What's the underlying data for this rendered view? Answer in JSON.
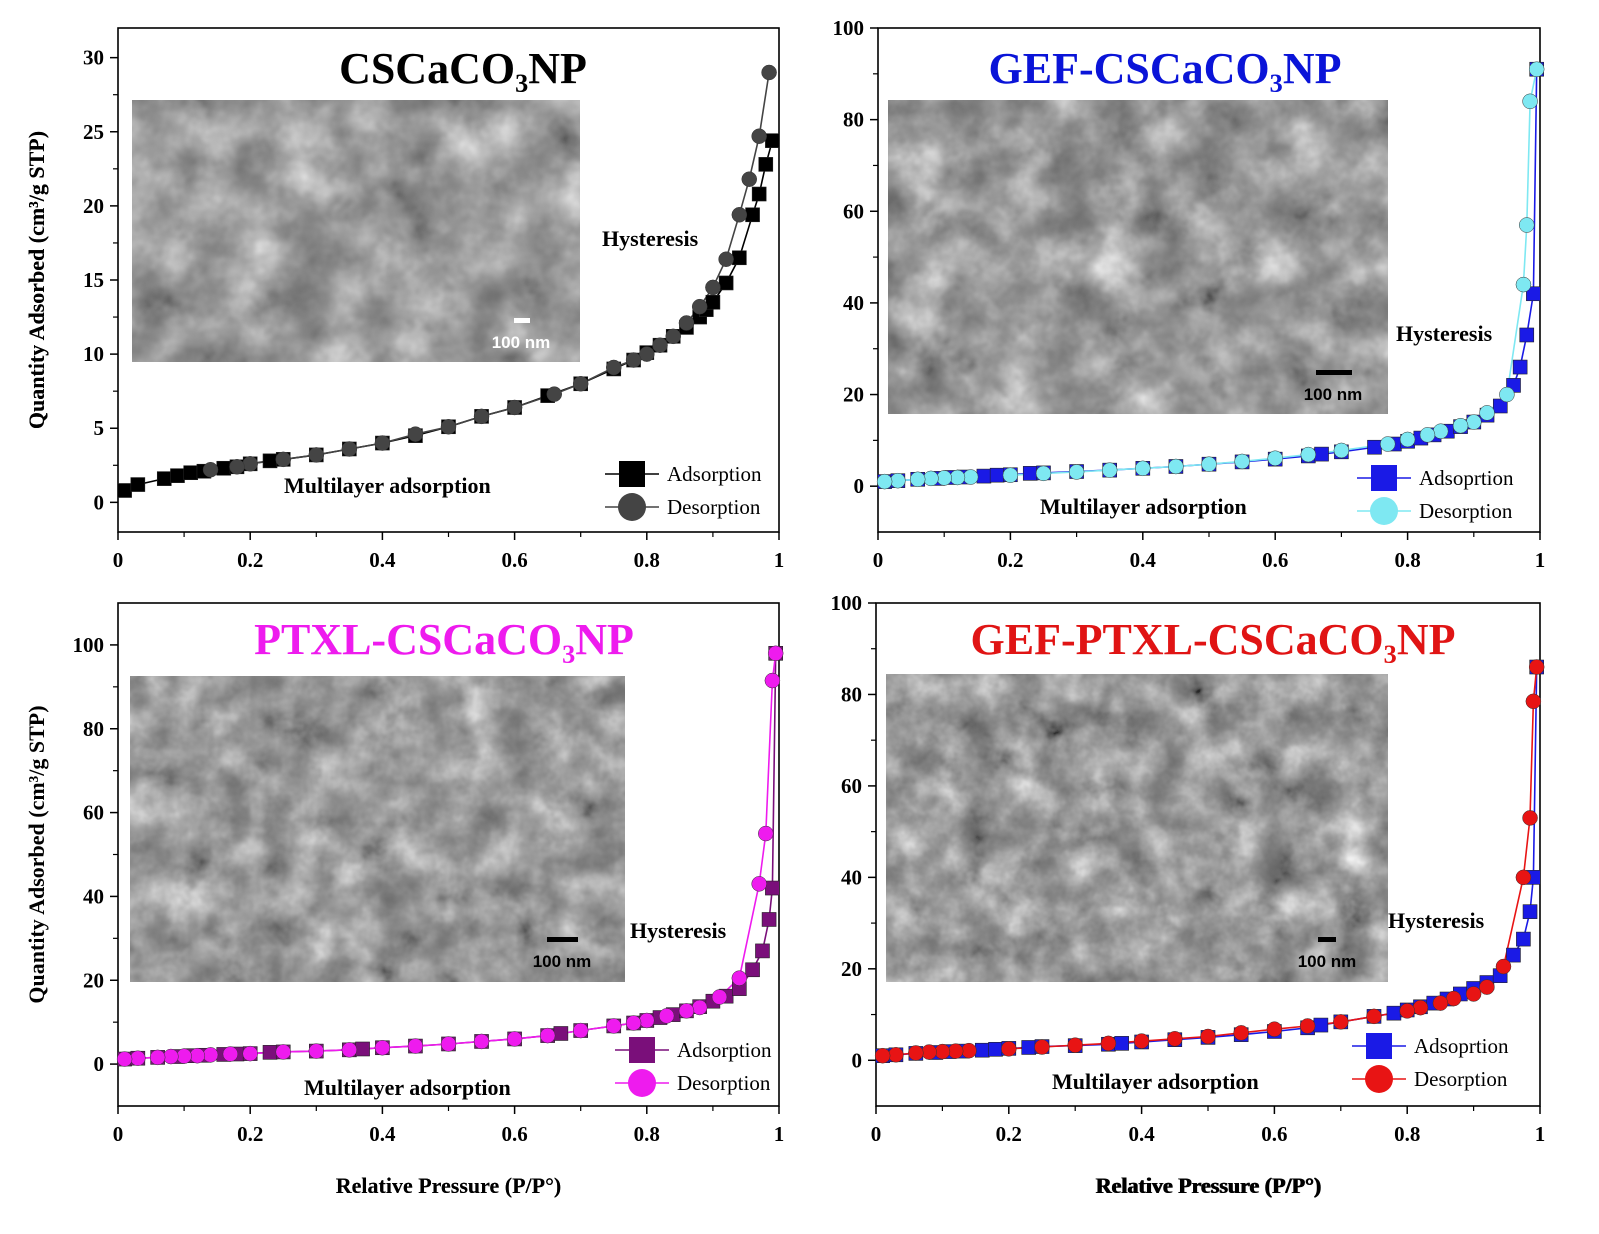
{
  "figure": {
    "shared_xlabel": "Relative Pressure (P/P°)",
    "shared_ylabel": "Quantity Adsorbed (cm³/g STP)"
  },
  "chart_data": [
    {
      "type": "scatter",
      "title": "CSCaCO₃NP",
      "title_color": "#000000",
      "xlabel": "Relative Pressure (P/P°)",
      "ylabel": "Quantity Adsorbed (cm³/g STP)",
      "xlim": [
        0.0,
        1.0
      ],
      "ylim": [
        -2,
        32
      ],
      "xticks": [
        0.0,
        0.2,
        0.4,
        0.6,
        0.8,
        1.0
      ],
      "yticks": [
        0,
        5,
        10,
        15,
        20,
        25,
        30
      ],
      "grid": false,
      "legend_position": "bottom-right",
      "annotations": [
        "Hysteresis",
        "Multilayer adsorption",
        "100 nm"
      ],
      "series": [
        {
          "name": "Adsorption",
          "marker": "square",
          "color": "#000000",
          "x": [
            0.01,
            0.03,
            0.07,
            0.09,
            0.11,
            0.13,
            0.16,
            0.18,
            0.2,
            0.23,
            0.25,
            0.3,
            0.35,
            0.4,
            0.45,
            0.5,
            0.55,
            0.6,
            0.65,
            0.7,
            0.75,
            0.78,
            0.8,
            0.82,
            0.84,
            0.86,
            0.88,
            0.89,
            0.9,
            0.92,
            0.94,
            0.96,
            0.97,
            0.98,
            0.99
          ],
          "y": [
            0.8,
            1.2,
            1.6,
            1.8,
            2.0,
            2.1,
            2.3,
            2.4,
            2.6,
            2.8,
            2.9,
            3.2,
            3.6,
            4.0,
            4.5,
            5.1,
            5.8,
            6.4,
            7.2,
            8.0,
            9.0,
            9.6,
            10.1,
            10.6,
            11.2,
            11.8,
            12.5,
            13.0,
            13.5,
            14.8,
            16.5,
            19.4,
            20.8,
            22.8,
            24.4
          ]
        },
        {
          "name": "Desorption",
          "marker": "circle",
          "color": "#444444",
          "x": [
            0.985,
            0.97,
            0.955,
            0.94,
            0.92,
            0.9,
            0.88,
            0.86,
            0.84,
            0.82,
            0.8,
            0.78,
            0.75,
            0.7,
            0.66,
            0.6,
            0.55,
            0.5,
            0.45,
            0.4,
            0.35,
            0.3,
            0.25,
            0.2,
            0.18,
            0.14
          ],
          "y": [
            29.0,
            24.7,
            21.8,
            19.4,
            16.4,
            14.5,
            13.2,
            12.1,
            11.2,
            10.6,
            10.0,
            9.6,
            9.1,
            8.0,
            7.3,
            6.4,
            5.8,
            5.1,
            4.6,
            4.0,
            3.6,
            3.2,
            2.9,
            2.6,
            2.4,
            2.2
          ]
        }
      ]
    },
    {
      "type": "scatter",
      "title": "GEF-CSCaCO₃NP",
      "title_color": "#0a14d8",
      "xlabel": "Relative Pressure (P/P°)",
      "ylabel": "Quantity Adsorbed (cm³/g STP)",
      "xlim": [
        0.0,
        1.0
      ],
      "ylim": [
        -10,
        100
      ],
      "xticks": [
        0.0,
        0.2,
        0.4,
        0.6,
        0.8,
        1.0
      ],
      "yticks": [
        0,
        20,
        40,
        60,
        80,
        100
      ],
      "grid": false,
      "legend_position": "bottom-right",
      "annotations": [
        "Hysteresis",
        "Multilayer adsorption",
        "100 nm"
      ],
      "series": [
        {
          "name": "Adsoprtion",
          "marker": "square",
          "color": "#1a1ae6",
          "x": [
            0.01,
            0.03,
            0.06,
            0.09,
            0.11,
            0.13,
            0.16,
            0.18,
            0.2,
            0.23,
            0.25,
            0.3,
            0.35,
            0.4,
            0.45,
            0.5,
            0.55,
            0.6,
            0.65,
            0.67,
            0.7,
            0.75,
            0.78,
            0.8,
            0.82,
            0.84,
            0.86,
            0.88,
            0.9,
            0.92,
            0.94,
            0.96,
            0.97,
            0.98,
            0.99,
            0.995
          ],
          "y": [
            1.0,
            1.2,
            1.5,
            1.7,
            1.9,
            2.0,
            2.2,
            2.4,
            2.5,
            2.8,
            2.9,
            3.2,
            3.5,
            3.9,
            4.3,
            4.8,
            5.3,
            5.9,
            6.6,
            7.0,
            7.5,
            8.5,
            9.2,
            9.8,
            10.5,
            11.2,
            12.0,
            13.0,
            14.0,
            15.5,
            17.5,
            22.0,
            26.0,
            33.0,
            42.0,
            91.0
          ]
        },
        {
          "name": "Desorption",
          "marker": "circle",
          "color": "#7ee8f2",
          "x": [
            0.995,
            0.985,
            0.98,
            0.975,
            0.95,
            0.92,
            0.9,
            0.88,
            0.85,
            0.83,
            0.8,
            0.77,
            0.7,
            0.65,
            0.6,
            0.55,
            0.5,
            0.45,
            0.4,
            0.35,
            0.3,
            0.25,
            0.2,
            0.14,
            0.12,
            0.1,
            0.08,
            0.06,
            0.03,
            0.01
          ],
          "y": [
            91.0,
            84.0,
            57.0,
            44.0,
            20.0,
            16.0,
            14.0,
            13.2,
            12.0,
            11.2,
            10.2,
            9.2,
            7.8,
            6.9,
            6.1,
            5.4,
            4.8,
            4.3,
            3.9,
            3.5,
            3.1,
            2.8,
            2.4,
            2.0,
            1.9,
            1.8,
            1.7,
            1.5,
            1.2,
            1.0
          ]
        }
      ]
    },
    {
      "type": "scatter",
      "title": "PTXL-CSCaCO₃NP",
      "title_color": "#ee1bee",
      "xlabel": "Relative Pressure (P/P°)",
      "ylabel": "Quantity Adsorbed  (cm³/g STP)",
      "xlim": [
        0.0,
        1.0
      ],
      "ylim": [
        -10,
        110
      ],
      "xticks": [
        0.0,
        0.2,
        0.4,
        0.6,
        0.8,
        1.0
      ],
      "yticks": [
        0,
        20,
        40,
        60,
        80,
        100
      ],
      "grid": false,
      "legend_position": "bottom-right",
      "annotations": [
        "Hysteresis",
        "Multilayer adsorption",
        "100 nm"
      ],
      "series": [
        {
          "name": "Adsorption",
          "marker": "square",
          "color": "#7a0f7a",
          "x": [
            0.01,
            0.03,
            0.06,
            0.09,
            0.11,
            0.13,
            0.16,
            0.18,
            0.2,
            0.23,
            0.25,
            0.3,
            0.35,
            0.37,
            0.4,
            0.45,
            0.5,
            0.55,
            0.6,
            0.65,
            0.67,
            0.7,
            0.75,
            0.78,
            0.8,
            0.82,
            0.84,
            0.86,
            0.88,
            0.9,
            0.92,
            0.94,
            0.96,
            0.975,
            0.985,
            0.99,
            0.995
          ],
          "y": [
            1.2,
            1.4,
            1.6,
            1.8,
            2.0,
            2.1,
            2.3,
            2.4,
            2.5,
            2.8,
            2.9,
            3.1,
            3.4,
            3.6,
            3.9,
            4.3,
            4.8,
            5.4,
            6.0,
            6.8,
            7.3,
            8.0,
            9.1,
            9.8,
            10.4,
            11.1,
            11.8,
            12.7,
            13.7,
            15.0,
            16.2,
            18.0,
            22.5,
            27.0,
            34.5,
            42.0,
            98.0
          ]
        },
        {
          "name": "Desorption",
          "marker": "circle",
          "color": "#ee1bee",
          "x": [
            0.995,
            0.99,
            0.98,
            0.97,
            0.94,
            0.91,
            0.88,
            0.86,
            0.83,
            0.8,
            0.78,
            0.75,
            0.7,
            0.65,
            0.6,
            0.55,
            0.5,
            0.45,
            0.4,
            0.35,
            0.3,
            0.25,
            0.2,
            0.17,
            0.14,
            0.12,
            0.1,
            0.08,
            0.06,
            0.03,
            0.01
          ],
          "y": [
            98.0,
            91.5,
            55.0,
            43.0,
            20.5,
            16.0,
            13.5,
            12.7,
            11.5,
            10.4,
            9.8,
            9.1,
            8.0,
            6.8,
            6.0,
            5.4,
            4.8,
            4.3,
            3.9,
            3.4,
            3.1,
            2.9,
            2.5,
            2.4,
            2.2,
            2.0,
            1.9,
            1.8,
            1.6,
            1.4,
            1.2
          ]
        }
      ]
    },
    {
      "type": "scatter",
      "title": "GEF-PTXL-CSCaCO₃NP",
      "title_color": "#e01414",
      "xlabel": "Relative Pressure (P/P°)",
      "ylabel": "",
      "xlim": [
        0.0,
        1.0
      ],
      "ylim": [
        -10,
        100
      ],
      "xticks": [
        0.0,
        0.2,
        0.4,
        0.6,
        0.8,
        1.0
      ],
      "yticks": [
        0,
        20,
        40,
        60,
        80,
        100
      ],
      "grid": false,
      "legend_position": "bottom-right",
      "annotations": [
        "Hysteresis",
        "Multilayer adsorption",
        "100 nm"
      ],
      "series": [
        {
          "name": "Adsoprtion",
          "marker": "square",
          "color": "#1a1ae6",
          "x": [
            0.01,
            0.03,
            0.06,
            0.09,
            0.11,
            0.13,
            0.16,
            0.18,
            0.2,
            0.23,
            0.25,
            0.3,
            0.35,
            0.37,
            0.4,
            0.45,
            0.5,
            0.55,
            0.6,
            0.65,
            0.67,
            0.7,
            0.75,
            0.78,
            0.8,
            0.82,
            0.84,
            0.86,
            0.88,
            0.9,
            0.92,
            0.94,
            0.96,
            0.975,
            0.985,
            0.99,
            0.995
          ],
          "y": [
            1.0,
            1.2,
            1.5,
            1.7,
            1.9,
            2.0,
            2.2,
            2.4,
            2.6,
            2.8,
            3.0,
            3.2,
            3.5,
            3.7,
            4.0,
            4.5,
            5.0,
            5.6,
            6.3,
            7.1,
            7.7,
            8.4,
            9.6,
            10.3,
            11.0,
            11.7,
            12.5,
            13.4,
            14.5,
            15.7,
            17.0,
            18.5,
            23.0,
            26.5,
            32.5,
            40.0,
            86.0
          ]
        },
        {
          "name": "Desorption",
          "marker": "circle",
          "color": "#e81414",
          "x": [
            0.995,
            0.99,
            0.985,
            0.975,
            0.945,
            0.92,
            0.9,
            0.87,
            0.85,
            0.82,
            0.8,
            0.75,
            0.7,
            0.65,
            0.6,
            0.55,
            0.5,
            0.45,
            0.4,
            0.35,
            0.3,
            0.25,
            0.2,
            0.14,
            0.12,
            0.1,
            0.08,
            0.06,
            0.03,
            0.01
          ],
          "y": [
            86.0,
            78.5,
            53.0,
            40.0,
            20.5,
            16.0,
            14.5,
            13.5,
            12.5,
            11.5,
            10.8,
            9.6,
            8.4,
            7.5,
            6.8,
            6.0,
            5.2,
            4.7,
            4.2,
            3.7,
            3.3,
            2.9,
            2.5,
            2.1,
            2.0,
            1.9,
            1.8,
            1.6,
            1.2,
            1.0
          ]
        }
      ]
    }
  ]
}
